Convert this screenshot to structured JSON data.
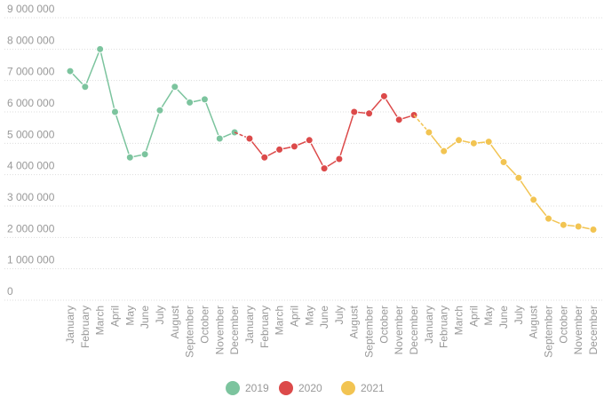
{
  "chart_data": {
    "type": "line",
    "categories": [
      "January",
      "February",
      "March",
      "April",
      "May",
      "June",
      "July",
      "August",
      "September",
      "October",
      "November",
      "December",
      "January",
      "February",
      "March",
      "April",
      "May",
      "June",
      "July",
      "August",
      "September",
      "October",
      "November",
      "December",
      "January",
      "February",
      "March",
      "April",
      "May",
      "June",
      "July",
      "August",
      "September",
      "October",
      "November",
      "December"
    ],
    "series": [
      {
        "name": "2019",
        "color": "#7cc49e",
        "values": [
          7300000,
          6800000,
          8000000,
          6000000,
          4550000,
          4650000,
          6050000,
          6800000,
          6300000,
          6400000,
          5150000,
          5350000,
          null,
          null,
          null,
          null,
          null,
          null,
          null,
          null,
          null,
          null,
          null,
          null,
          null,
          null,
          null,
          null,
          null,
          null,
          null,
          null,
          null,
          null,
          null,
          null
        ]
      },
      {
        "name": "2020",
        "color": "#dc4a4a",
        "values": [
          null,
          null,
          null,
          null,
          null,
          null,
          null,
          null,
          null,
          null,
          null,
          null,
          5150000,
          4550000,
          4800000,
          4900000,
          5100000,
          4200000,
          4500000,
          6000000,
          5950000,
          6500000,
          5750000,
          5900000,
          null,
          null,
          null,
          null,
          null,
          null,
          null,
          null,
          null,
          null,
          null,
          null
        ]
      },
      {
        "name": "2021",
        "color": "#f2c452",
        "values": [
          null,
          null,
          null,
          null,
          null,
          null,
          null,
          null,
          null,
          null,
          null,
          null,
          null,
          null,
          null,
          null,
          null,
          null,
          null,
          null,
          null,
          null,
          null,
          null,
          5350000,
          4750000,
          5100000,
          5000000,
          5050000,
          4400000,
          3900000,
          3200000,
          2600000,
          2400000,
          2350000,
          2250000
        ]
      }
    ],
    "ylim": [
      0,
      9000000
    ],
    "yticks": [
      0,
      {
        "value": 1000000,
        "label": "1 000 000"
      },
      {
        "value": 2000000,
        "label": "2 000 000"
      },
      {
        "value": 3000000,
        "label": "3 000 000"
      },
      {
        "value": 4000000,
        "label": "4 000 000"
      },
      {
        "value": 5000000,
        "label": "5 000 000"
      },
      {
        "value": 6000000,
        "label": "6 000 000"
      },
      {
        "value": 7000000,
        "label": "7 000 000"
      },
      {
        "value": 8000000,
        "label": "8 000 000"
      },
      {
        "value": 9000000,
        "label": "9 000 000"
      }
    ],
    "grid": true,
    "legend": "bottom"
  }
}
